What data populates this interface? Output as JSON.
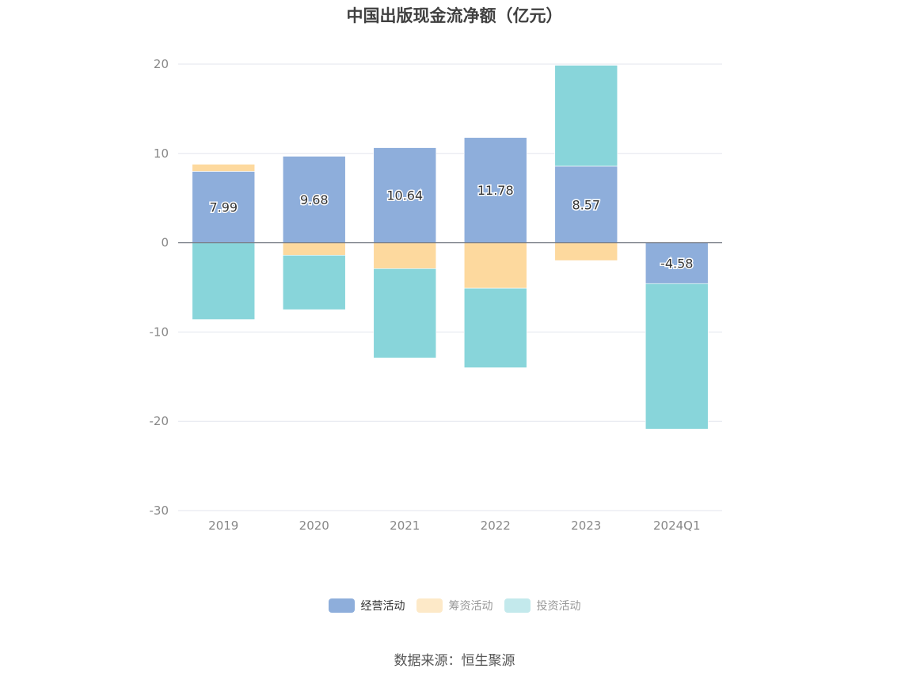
{
  "chart_data": {
    "type": "bar",
    "stacked": true,
    "title": "中国出版现金流净额（亿元）",
    "categories": [
      "2019",
      "2020",
      "2021",
      "2022",
      "2023",
      "2024Q1"
    ],
    "ylim": [
      -30,
      20
    ],
    "yticks": [
      20,
      10,
      0,
      -10,
      -20,
      -30
    ],
    "grid": true,
    "legend_position": "bottom",
    "series": [
      {
        "name": "经营活动",
        "color": "#8eaedb",
        "values": [
          7.99,
          9.68,
          10.64,
          11.78,
          8.57,
          -4.58
        ],
        "show_labels": true
      },
      {
        "name": "筹资活动",
        "color": "#fdd99e",
        "values": [
          0.8,
          -1.4,
          -2.9,
          -5.1,
          -2.0,
          0.0
        ],
        "show_labels": false
      },
      {
        "name": "投资活动",
        "color": "#88d5da",
        "values": [
          -8.6,
          -6.1,
          -10.0,
          -8.9,
          11.3,
          -16.3
        ],
        "show_labels": false
      }
    ]
  },
  "legend": [
    {
      "label": "经营活动",
      "color": "#8eaedb",
      "active": true
    },
    {
      "label": "筹资活动",
      "color": "#fde9c8",
      "active": false
    },
    {
      "label": "投资活动",
      "color": "#c3e9ec",
      "active": false
    }
  ],
  "source": "数据来源：恒生聚源"
}
